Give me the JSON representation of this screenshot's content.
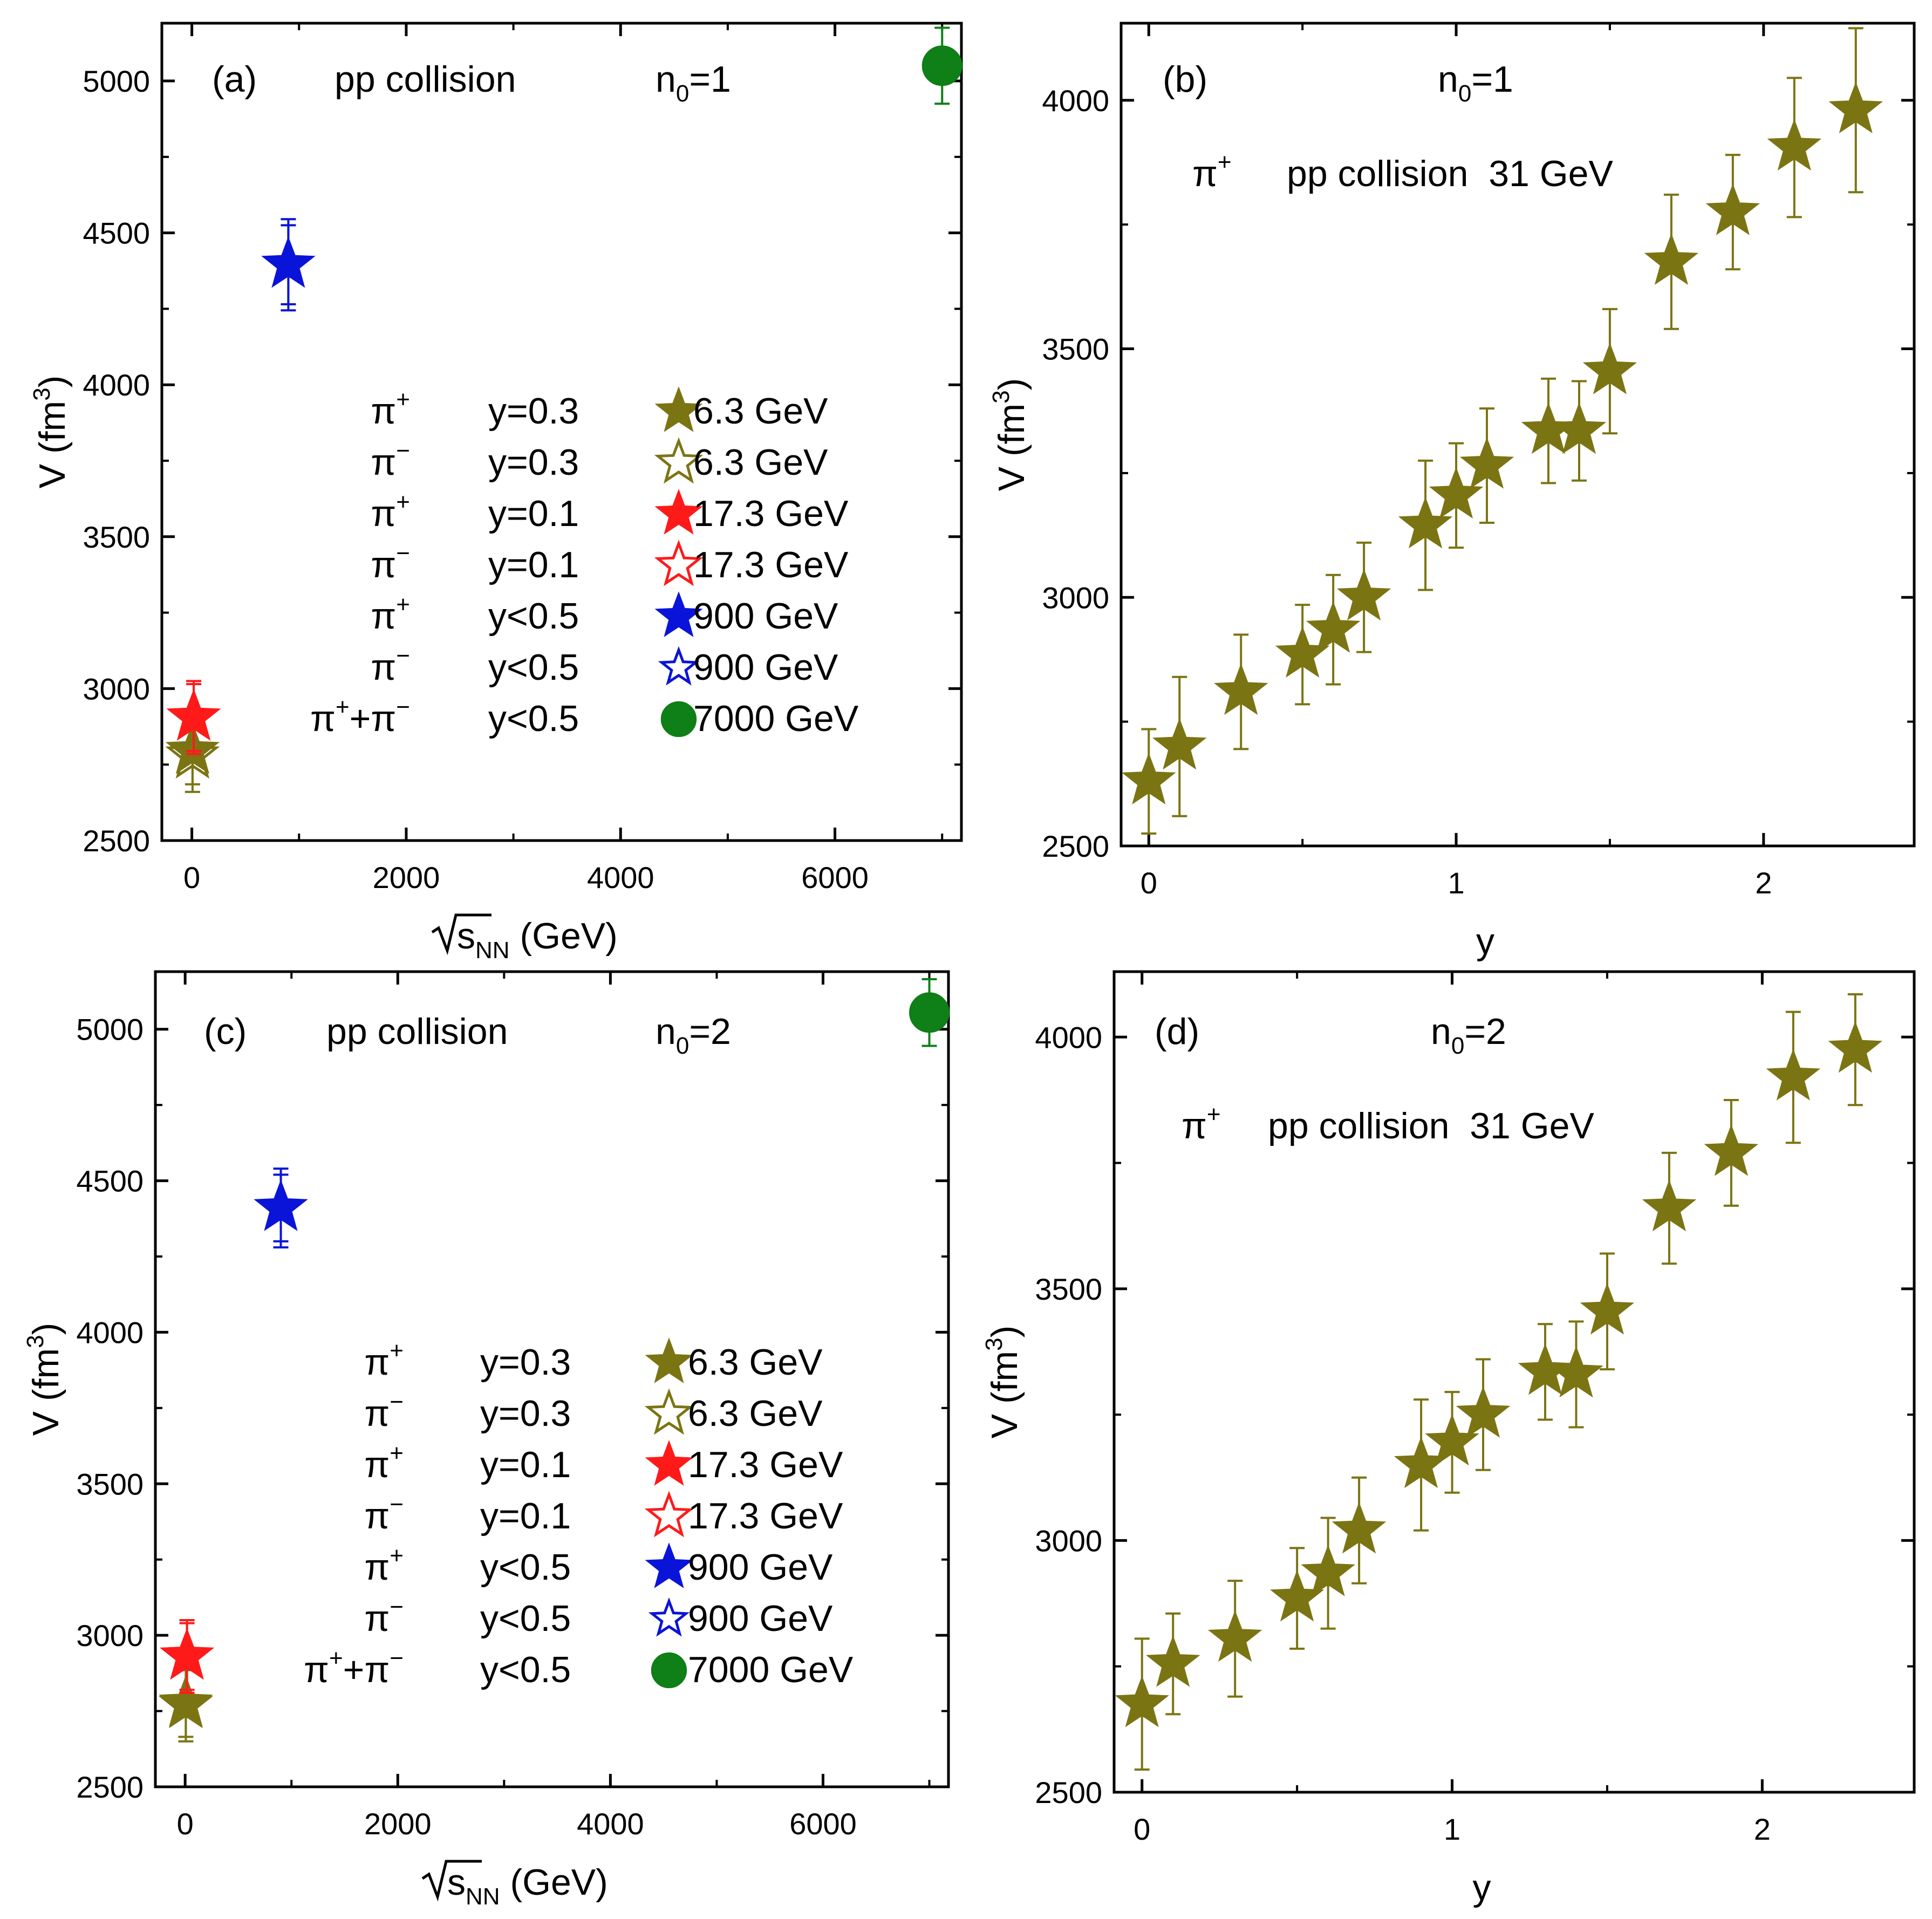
{
  "colors": {
    "olive": "#7b7413",
    "red": "#ff1a1a",
    "blue": "#0a14d8",
    "green": "#0f7f17",
    "axis": "#000000"
  },
  "chart_data": [
    {
      "panel_label": "(a)",
      "type": "scatter",
      "annotations": [
        "pp collision"
      ],
      "n0_base": "n",
      "n0_sub": "0",
      "n0_value": "=1",
      "xlabel_prefix": "s",
      "xlabel_sub": "NN",
      "xlabel_suffix": " (GeV)",
      "ylabel_main": "V (fm",
      "ylabel_sup": "3",
      "ylabel_end": ")",
      "xlim": [
        -280,
        7180
      ],
      "ylim": [
        2500,
        5190
      ],
      "xticks": [
        0,
        2000,
        4000,
        6000
      ],
      "xtick_labels": [
        "0",
        "2000",
        "4000",
        "6000"
      ],
      "yticks": [
        2500,
        3000,
        3500,
        4000,
        4500,
        5000
      ],
      "ytick_labels": [
        "2500",
        "3000",
        "3500",
        "4000",
        "4500",
        "5000"
      ],
      "series": [
        {
          "name": "π+ y=0.3 6.3 GeV",
          "marker": "star",
          "fill": "filled",
          "color": "olive",
          "points": [
            {
              "x": 6.3,
              "y": 2795,
              "err": 110
            }
          ]
        },
        {
          "name": "π- y=0.3 6.3 GeV",
          "marker": "star",
          "fill": "open",
          "color": "olive",
          "points": [
            {
              "x": 6.3,
              "y": 2780,
              "err": 120
            }
          ]
        },
        {
          "name": "π+ y=0.1 17.3 GeV",
          "marker": "star",
          "fill": "filled",
          "color": "red",
          "points": [
            {
              "x": 17.3,
              "y": 2905,
              "err": 110
            }
          ]
        },
        {
          "name": "π- y=0.1 17.3 GeV",
          "marker": "star",
          "fill": "open",
          "color": "red",
          "points": [
            {
              "x": 17.3,
              "y": 2905,
              "err": 120
            }
          ]
        },
        {
          "name": "π+ y<0.5 900 GeV",
          "marker": "star",
          "fill": "filled",
          "color": "blue",
          "points": [
            {
              "x": 900,
              "y": 4395,
              "err": 130
            }
          ]
        },
        {
          "name": "π- y<0.5 900 GeV",
          "marker": "star",
          "fill": "open",
          "color": "blue",
          "points": [
            {
              "x": 900,
              "y": 4395,
              "err": 150
            }
          ]
        },
        {
          "name": "π++π- y<0.5 7000 GeV",
          "marker": "circle",
          "fill": "filled",
          "color": "green",
          "points": [
            {
              "x": 7000,
              "y": 5050,
              "err": 125
            }
          ]
        }
      ],
      "legend": [
        {
          "particle_base": "π",
          "particle_sup": "+",
          "cut": "y=0.3",
          "marker": "star",
          "fill": "filled",
          "color": "olive",
          "energy": "6.3 GeV"
        },
        {
          "particle_base": "π",
          "particle_sup": "−",
          "cut": "y=0.3",
          "marker": "star",
          "fill": "open",
          "color": "olive",
          "energy": "6.3 GeV"
        },
        {
          "particle_base": "π",
          "particle_sup": "+",
          "cut": "y=0.1",
          "marker": "star",
          "fill": "filled",
          "color": "red",
          "energy": "17.3 GeV"
        },
        {
          "particle_base": "π",
          "particle_sup": "−",
          "cut": "y=0.1",
          "marker": "star",
          "fill": "open",
          "color": "red",
          "energy": "17.3 GeV"
        },
        {
          "particle_base": "π",
          "particle_sup": "+",
          "cut": "y<0.5",
          "marker": "star",
          "fill": "filled",
          "color": "blue",
          "energy": "900 GeV"
        },
        {
          "particle_base": "π",
          "particle_sup": "−",
          "cut": "y<0.5",
          "marker": "star",
          "fill": "open",
          "color": "blue",
          "energy": "900 GeV"
        },
        {
          "particle_base": "π",
          "particle_sup": "+",
          "particle_mid": "+π",
          "particle_sup2": "−",
          "cut": "y<0.5",
          "marker": "circle",
          "fill": "filled",
          "color": "green",
          "energy": "7000 GeV"
        }
      ]
    },
    {
      "panel_label": "(b)",
      "type": "scatter",
      "annotations": [
        "pp collision  31 GeV"
      ],
      "particle_base": "π",
      "particle_sup": "+",
      "n0_base": "n",
      "n0_sub": "0",
      "n0_value": "=1",
      "xlabel": "y",
      "ylabel_main": "V (fm",
      "ylabel_sup": "3",
      "ylabel_end": ")",
      "xlim": [
        -0.09,
        2.49
      ],
      "ylim": [
        2500,
        4155
      ],
      "xticks": [
        0,
        1,
        2
      ],
      "xtick_labels": [
        "0",
        "1",
        "2"
      ],
      "yticks": [
        2500,
        3000,
        3500,
        4000
      ],
      "ytick_labels": [
        "2500",
        "3000",
        "3500",
        "4000"
      ],
      "series": [
        {
          "name": "π+ pp 31 GeV",
          "marker": "star",
          "fill": "filled",
          "color": "olive",
          "points": [
            {
              "x": 0.0,
              "y": 2630,
              "err": 105
            },
            {
              "x": 0.1,
              "y": 2700,
              "err": 140
            },
            {
              "x": 0.3,
              "y": 2810,
              "err": 115
            },
            {
              "x": 0.5,
              "y": 2885,
              "err": 100
            },
            {
              "x": 0.6,
              "y": 2935,
              "err": 110
            },
            {
              "x": 0.7,
              "y": 3000,
              "err": 110
            },
            {
              "x": 0.9,
              "y": 3145,
              "err": 130
            },
            {
              "x": 1.0,
              "y": 3205,
              "err": 105
            },
            {
              "x": 1.1,
              "y": 3265,
              "err": 115
            },
            {
              "x": 1.3,
              "y": 3335,
              "err": 105
            },
            {
              "x": 1.4,
              "y": 3335,
              "err": 100
            },
            {
              "x": 1.5,
              "y": 3455,
              "err": 125
            },
            {
              "x": 1.7,
              "y": 3675,
              "err": 135
            },
            {
              "x": 1.9,
              "y": 3775,
              "err": 115
            },
            {
              "x": 2.1,
              "y": 3905,
              "err": 140
            },
            {
              "x": 2.3,
              "y": 3980,
              "err": 165
            }
          ]
        }
      ]
    },
    {
      "panel_label": "(c)",
      "type": "scatter",
      "annotations": [
        "pp collision"
      ],
      "n0_base": "n",
      "n0_sub": "0",
      "n0_value": "=2",
      "xlabel_prefix": "s",
      "xlabel_sub": "NN",
      "xlabel_suffix": " (GeV)",
      "ylabel_main": "V (fm",
      "ylabel_sup": "3",
      "ylabel_end": ")",
      "xlim": [
        -280,
        7180
      ],
      "ylim": [
        2500,
        5190
      ],
      "xticks": [
        0,
        2000,
        4000,
        6000
      ],
      "xtick_labels": [
        "0",
        "2000",
        "4000",
        "6000"
      ],
      "yticks": [
        2500,
        3000,
        3500,
        4000,
        4500,
        5000
      ],
      "ytick_labels": [
        "2500",
        "3000",
        "3500",
        "4000",
        "4500",
        "5000"
      ],
      "series": [
        {
          "name": "π+ y=0.3 6.3 GeV",
          "marker": "star",
          "fill": "filled",
          "color": "olive",
          "points": [
            {
              "x": 6.3,
              "y": 2775,
              "err": 110
            }
          ]
        },
        {
          "name": "π- y=0.3 6.3 GeV",
          "marker": "star",
          "fill": "open",
          "color": "olive",
          "points": [
            {
              "x": 6.3,
              "y": 2770,
              "err": 120
            }
          ]
        },
        {
          "name": "π+ y=0.1 17.3 GeV",
          "marker": "star",
          "fill": "filled",
          "color": "red",
          "points": [
            {
              "x": 17.3,
              "y": 2930,
              "err": 110
            }
          ]
        },
        {
          "name": "π- y=0.1 17.3 GeV",
          "marker": "star",
          "fill": "open",
          "color": "red",
          "points": [
            {
              "x": 17.3,
              "y": 2930,
              "err": 120
            }
          ]
        },
        {
          "name": "π+ y<0.5 900 GeV",
          "marker": "star",
          "fill": "filled",
          "color": "blue",
          "points": [
            {
              "x": 900,
              "y": 4410,
              "err": 110
            }
          ]
        },
        {
          "name": "π- y<0.5 900 GeV",
          "marker": "star",
          "fill": "open",
          "color": "blue",
          "points": [
            {
              "x": 900,
              "y": 4410,
              "err": 130
            }
          ]
        },
        {
          "name": "π++π- y<0.5 7000 GeV",
          "marker": "circle",
          "fill": "filled",
          "color": "green",
          "points": [
            {
              "x": 7000,
              "y": 5055,
              "err": 110
            }
          ]
        }
      ],
      "legend": [
        {
          "particle_base": "π",
          "particle_sup": "+",
          "cut": "y=0.3",
          "marker": "star",
          "fill": "filled",
          "color": "olive",
          "energy": "6.3 GeV"
        },
        {
          "particle_base": "π",
          "particle_sup": "−",
          "cut": "y=0.3",
          "marker": "star",
          "fill": "open",
          "color": "olive",
          "energy": "6.3 GeV"
        },
        {
          "particle_base": "π",
          "particle_sup": "+",
          "cut": "y=0.1",
          "marker": "star",
          "fill": "filled",
          "color": "red",
          "energy": "17.3 GeV"
        },
        {
          "particle_base": "π",
          "particle_sup": "−",
          "cut": "y=0.1",
          "marker": "star",
          "fill": "open",
          "color": "red",
          "energy": "17.3 GeV"
        },
        {
          "particle_base": "π",
          "particle_sup": "+",
          "cut": "y<0.5",
          "marker": "star",
          "fill": "filled",
          "color": "blue",
          "energy": "900 GeV"
        },
        {
          "particle_base": "π",
          "particle_sup": "−",
          "cut": "y<0.5",
          "marker": "star",
          "fill": "open",
          "color": "blue",
          "energy": "900 GeV"
        },
        {
          "particle_base": "π",
          "particle_sup": "+",
          "particle_mid": "+π",
          "particle_sup2": "−",
          "cut": "y<0.5",
          "marker": "circle",
          "fill": "filled",
          "color": "green",
          "energy": "7000 GeV"
        }
      ]
    },
    {
      "panel_label": "(d)",
      "type": "scatter",
      "annotations": [
        "pp collision  31 GeV"
      ],
      "particle_base": "π",
      "particle_sup": "+",
      "n0_base": "n",
      "n0_sub": "0",
      "n0_value": "=2",
      "xlabel": "y",
      "ylabel_main": "V (fm",
      "ylabel_sup": "3",
      "ylabel_end": ")",
      "xlim": [
        -0.09,
        2.49
      ],
      "ylim": [
        2500,
        4130
      ],
      "xticks": [
        0,
        1,
        2
      ],
      "xtick_labels": [
        "0",
        "1",
        "2"
      ],
      "yticks": [
        2500,
        3000,
        3500,
        4000
      ],
      "ytick_labels": [
        "2500",
        "3000",
        "3500",
        "4000"
      ],
      "series": [
        {
          "name": "π+ pp 31 GeV",
          "marker": "star",
          "fill": "filled",
          "color": "olive",
          "points": [
            {
              "x": 0.0,
              "y": 2675,
              "err": 130
            },
            {
              "x": 0.1,
              "y": 2755,
              "err": 100
            },
            {
              "x": 0.3,
              "y": 2805,
              "err": 115
            },
            {
              "x": 0.5,
              "y": 2885,
              "err": 100
            },
            {
              "x": 0.6,
              "y": 2935,
              "err": 110
            },
            {
              "x": 0.7,
              "y": 3020,
              "err": 105
            },
            {
              "x": 0.9,
              "y": 3150,
              "err": 130
            },
            {
              "x": 1.0,
              "y": 3195,
              "err": 100
            },
            {
              "x": 1.1,
              "y": 3250,
              "err": 110
            },
            {
              "x": 1.3,
              "y": 3335,
              "err": 95
            },
            {
              "x": 1.4,
              "y": 3330,
              "err": 105
            },
            {
              "x": 1.5,
              "y": 3455,
              "err": 115
            },
            {
              "x": 1.7,
              "y": 3660,
              "err": 110
            },
            {
              "x": 1.9,
              "y": 3770,
              "err": 105
            },
            {
              "x": 2.1,
              "y": 3920,
              "err": 130
            },
            {
              "x": 2.3,
              "y": 3975,
              "err": 110
            }
          ]
        }
      ]
    }
  ]
}
